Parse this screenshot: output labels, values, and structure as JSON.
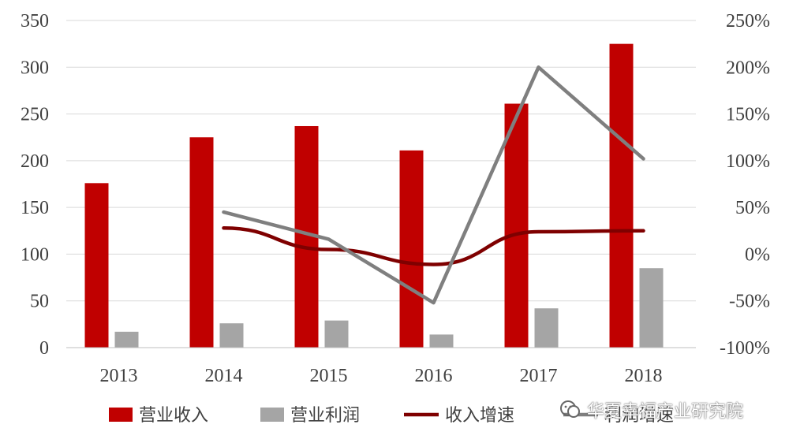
{
  "chart_data": {
    "type": "bar",
    "categories": [
      "2013",
      "2014",
      "2015",
      "2016",
      "2017",
      "2018"
    ],
    "series": [
      {
        "name": "营业收入",
        "kind": "bar",
        "axis": "left",
        "color": "#C00000",
        "values": [
          176,
          225,
          237,
          211,
          261,
          325
        ]
      },
      {
        "name": "营业利润",
        "kind": "bar",
        "axis": "left",
        "color": "#A5A5A5",
        "values": [
          17,
          26,
          29,
          14,
          42,
          85
        ]
      },
      {
        "name": "收入增速",
        "kind": "line",
        "axis": "right",
        "color": "#7F0000",
        "values": [
          null,
          0.28,
          0.05,
          -0.11,
          0.24,
          0.25
        ]
      },
      {
        "name": "利润增速",
        "kind": "line",
        "axis": "right",
        "color": "#7F7F7F",
        "values": [
          null,
          0.45,
          0.16,
          -0.52,
          2.0,
          1.02
        ]
      }
    ],
    "y_left": {
      "min": 0,
      "max": 350,
      "ticks": [
        "0",
        "50",
        "100",
        "150",
        "200",
        "250",
        "300",
        "350"
      ]
    },
    "y_right": {
      "min": -1.0,
      "max": 2.5,
      "ticks": [
        "-100%",
        "-50%",
        "0%",
        "50%",
        "100%",
        "150%",
        "200%",
        "250%"
      ]
    },
    "grid": true,
    "legend_position": "bottom"
  },
  "watermark": {
    "text": "华夏幸福产业研究院"
  }
}
